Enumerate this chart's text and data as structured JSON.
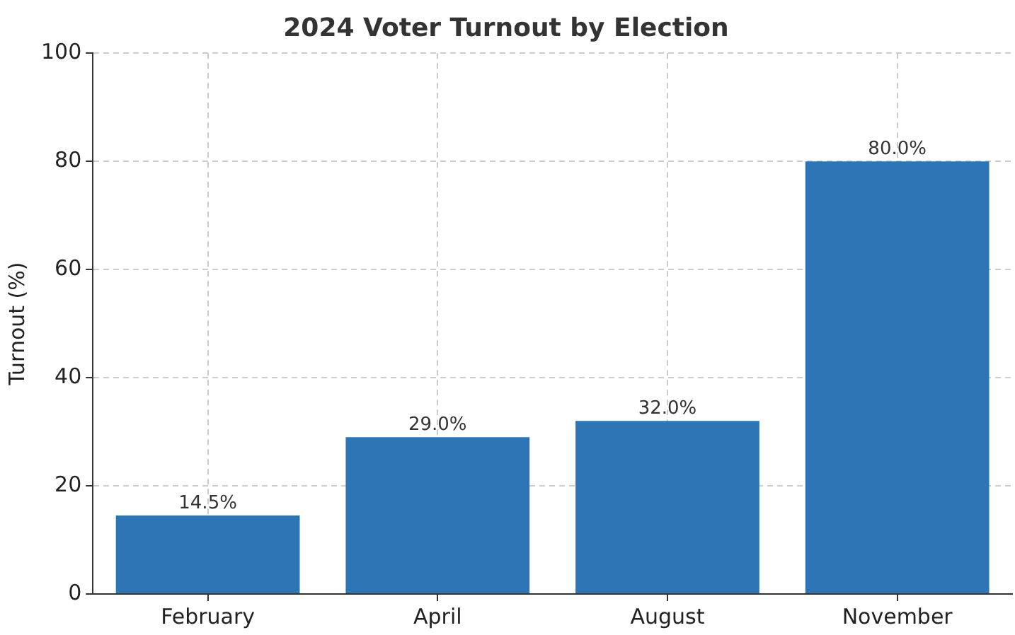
{
  "chart_data": {
    "type": "bar",
    "title": "2024 Voter Turnout by Election",
    "ylabel": "Turnout (%)",
    "categories": [
      "February",
      "April",
      "August",
      "November"
    ],
    "values": [
      14.5,
      29.0,
      32.0,
      80.0
    ],
    "value_labels": [
      "14.5%",
      "29.0%",
      "32.0%",
      "80.0%"
    ],
    "color": "#2e75b6",
    "ylim": [
      0,
      100
    ],
    "yticks": [
      0,
      20,
      40,
      60,
      80,
      100
    ],
    "grid": true,
    "legend": false
  }
}
